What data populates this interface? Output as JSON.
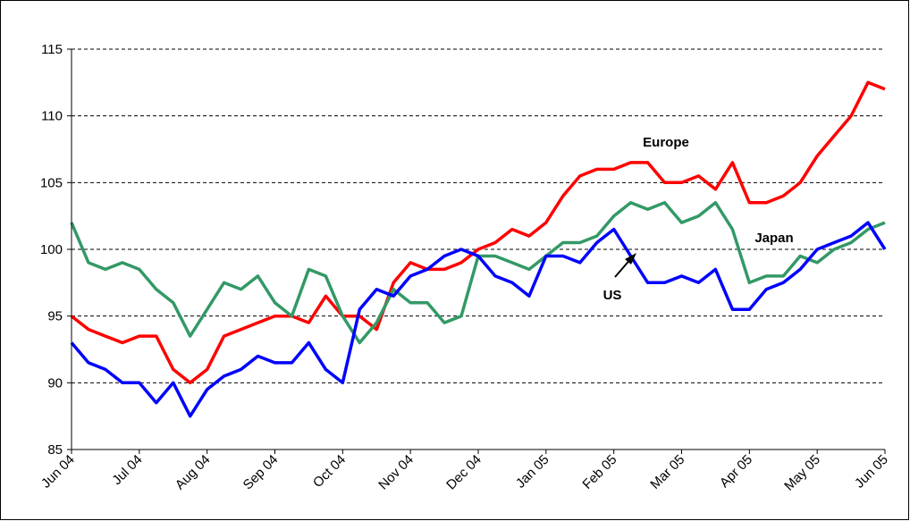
{
  "chart_data": {
    "type": "line",
    "x": [
      0,
      0.25,
      0.5,
      0.75,
      1,
      1.25,
      1.5,
      1.75,
      2,
      2.25,
      2.5,
      2.75,
      3,
      3.25,
      3.5,
      3.75,
      4,
      4.25,
      4.5,
      4.75,
      5,
      5.25,
      5.5,
      5.75,
      6,
      6.25,
      6.5,
      6.75,
      7,
      7.25,
      7.5,
      7.75,
      8,
      8.25,
      8.5,
      8.75,
      9,
      9.25,
      9.5,
      9.75,
      10,
      10.25,
      10.5,
      10.75,
      11,
      11.25,
      11.5,
      11.75,
      12
    ],
    "xlim": [
      0,
      12
    ],
    "xticks": [
      {
        "value": 0,
        "label": "Jun 04"
      },
      {
        "value": 1,
        "label": "Jul 04"
      },
      {
        "value": 2,
        "label": "Aug 04"
      },
      {
        "value": 3,
        "label": "Sep 04"
      },
      {
        "value": 4,
        "label": "Oct 04"
      },
      {
        "value": 5,
        "label": "Nov 04"
      },
      {
        "value": 6,
        "label": "Dec 04"
      },
      {
        "value": 7,
        "label": "Jan 05"
      },
      {
        "value": 8,
        "label": "Feb 05"
      },
      {
        "value": 9,
        "label": "Mar 05"
      },
      {
        "value": 10,
        "label": "Apr 05"
      },
      {
        "value": 11,
        "label": "May 05"
      },
      {
        "value": 12,
        "label": "Jun 05"
      }
    ],
    "ylim": [
      85,
      115
    ],
    "yticks": [
      85,
      90,
      95,
      100,
      105,
      110,
      115
    ],
    "grid": true,
    "series": [
      {
        "name": "Europe",
        "color": "#ff0000",
        "values": [
          95,
          94,
          93.5,
          93,
          93.5,
          93.5,
          91,
          90,
          91,
          93.5,
          94,
          94.5,
          95,
          95,
          94.5,
          96.5,
          95,
          95,
          94,
          97.5,
          99,
          98.5,
          98.5,
          99,
          100,
          100.5,
          101.5,
          101,
          102,
          104,
          105.5,
          106,
          106,
          106.5,
          106.5,
          105,
          105,
          105.5,
          104.5,
          106.5,
          103.5,
          103.5,
          104,
          105,
          107,
          108.5,
          110,
          112.5,
          112
        ]
      },
      {
        "name": "Japan",
        "color": "#339966",
        "values": [
          102,
          99,
          98.5,
          99,
          98.5,
          97,
          96,
          93.5,
          95.5,
          97.5,
          97,
          98,
          96,
          95,
          98.5,
          98,
          95,
          93,
          94.5,
          97,
          96,
          96,
          94.5,
          95,
          99.5,
          99.5,
          99,
          98.5,
          99.5,
          100.5,
          100.5,
          101,
          102.5,
          103.5,
          103,
          103.5,
          102,
          102.5,
          103.5,
          101.5,
          97.5,
          98,
          98,
          99.5,
          99,
          100,
          100.5,
          101.5,
          102
        ]
      },
      {
        "name": "US",
        "color": "#0000ff",
        "values": [
          93,
          91.5,
          91,
          90,
          90,
          88.5,
          90,
          87.5,
          89.5,
          90.5,
          91,
          92,
          91.5,
          91.5,
          93,
          91,
          90,
          95.5,
          97,
          96.5,
          98,
          98.5,
          99.5,
          100,
          99.5,
          98,
          97.5,
          96.5,
          99.5,
          99.5,
          99,
          100.5,
          101.5,
          99.5,
          97.5,
          97.5,
          98,
          97.5,
          98.5,
          95.5,
          95.5,
          97,
          97.5,
          98.5,
          100,
          100.5,
          101,
          102,
          100
        ]
      }
    ]
  }
}
